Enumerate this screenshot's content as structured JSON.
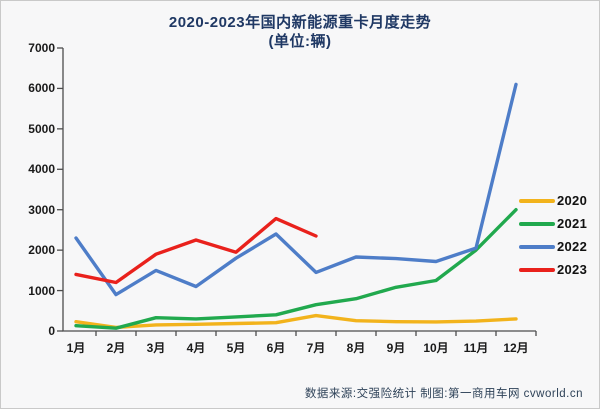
{
  "page": {
    "title_line1": "2020-2023年国内新能源重卡月度走势",
    "title_line2": "(单位:辆)",
    "title_color": "#1f3864",
    "footer": "数据来源:交强险统计  制图:第一商用车网 cvworld.cn",
    "footer_color": "#2e4258"
  },
  "chart_data": {
    "type": "line",
    "title": "2020-2023年国内新能源重卡月度走势",
    "subtitle": "(单位:辆)",
    "categories": [
      "1月",
      "2月",
      "3月",
      "4月",
      "5月",
      "6月",
      "7月",
      "8月",
      "9月",
      "10月",
      "11月",
      "12月"
    ],
    "series": [
      {
        "name": "2020",
        "color": "#f2b31c",
        "values": [
          230,
          90,
          150,
          165,
          185,
          205,
          380,
          255,
          230,
          225,
          245,
          300
        ]
      },
      {
        "name": "2021",
        "color": "#21a94e",
        "values": [
          130,
          70,
          330,
          300,
          350,
          400,
          650,
          800,
          1080,
          1250,
          2000,
          3000
        ]
      },
      {
        "name": "2022",
        "color": "#4e7dc8",
        "values": [
          2300,
          900,
          1500,
          1100,
          1800,
          2400,
          1450,
          1830,
          1790,
          1720,
          2050,
          6100
        ]
      },
      {
        "name": "2023",
        "color": "#e9211c",
        "values": [
          1400,
          1200,
          1900,
          2250,
          1950,
          2780,
          2350
        ]
      }
    ],
    "ylim": [
      0,
      7000
    ],
    "ytick_step": 1000,
    "grid": false,
    "legend_position": "right",
    "axis_color": "#4d4d4d"
  }
}
